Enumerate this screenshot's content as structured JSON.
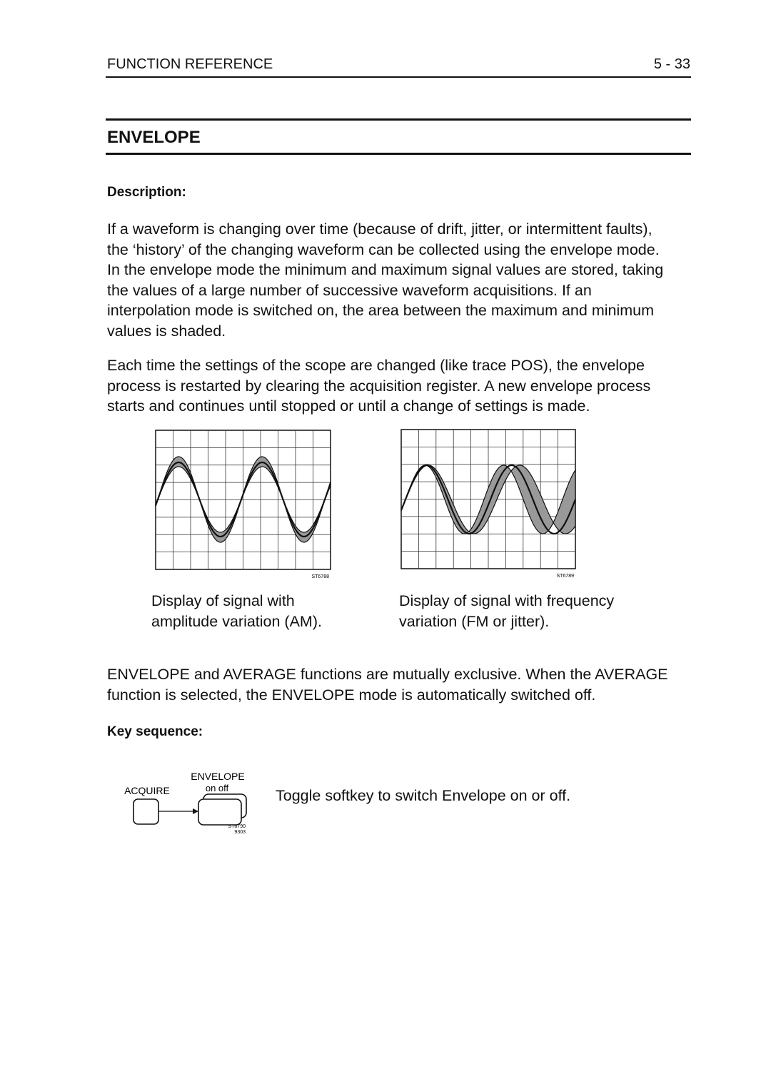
{
  "header": {
    "section": "FUNCTION REFERENCE",
    "page": "5 - 33"
  },
  "title": "ENVELOPE",
  "description": {
    "heading": "Description:",
    "paragraphs": [
      [
        "If a waveform is changing over time (because of drift, jitter, or intermittent faults),",
        "the ‘history’ of the changing waveform can be collected using the envelope mode.",
        "In the envelope mode the minimum and maximum signal values are stored, taking",
        "the values of a large number of successive waveform acquisitions. If an",
        "interpolation mode is switched on, the area between the maximum and minimum",
        "values is shaded."
      ],
      [
        "Each time the settings of the scope are changed (like trace POS), the envelope",
        "process is restarted by clearing the acquisition register. A new envelope process",
        "starts and continues until stopped or until a change of settings is made."
      ]
    ]
  },
  "figures": [
    {
      "code": "ST6788",
      "caption": [
        "Display of signal with",
        "amplitude variation (AM)."
      ]
    },
    {
      "code": "ST6789",
      "caption": [
        "Display of signal with frequency",
        "variation (FM or jitter)."
      ]
    }
  ],
  "note": [
    "ENVELOPE and AVERAGE functions are mutually exclusive. When the AVERAGE",
    "function is selected, the ENVELOPE mode is automatically switched off."
  ],
  "key_sequence": {
    "heading": "Key sequence:",
    "key": "ACQUIRE",
    "softkey": "ENVELOPE",
    "options": "on off",
    "codes": [
      "ST6790",
      "9303"
    ],
    "text": "Toggle softkey to switch Envelope on or off."
  }
}
